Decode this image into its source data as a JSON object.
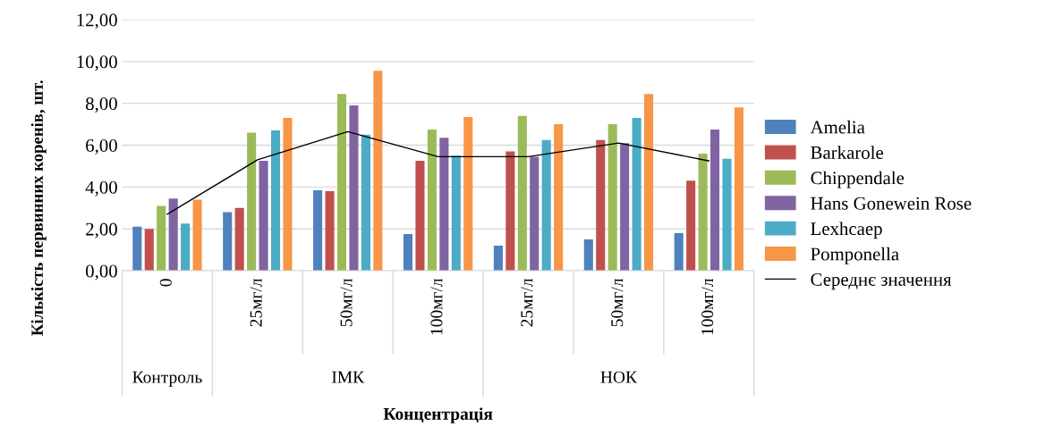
{
  "chart_data": {
    "type": "bar",
    "xlabel": "Концентрація",
    "ylabel": "Кількість первинних коренів, шт.",
    "categories": [
      "0",
      "25мг/л",
      "50мг/л",
      "100мг/л",
      "25мг/л",
      "50мг/л",
      "100мг/л"
    ],
    "annotations": [
      "Контроль",
      "ІМК",
      "НОК"
    ],
    "series": [
      {
        "name": "Amelia",
        "color": "#4f81bd",
        "values": [
          2.1,
          2.8,
          3.85,
          1.75,
          1.2,
          1.5,
          1.8
        ]
      },
      {
        "name": "Barkarole",
        "color": "#c0504d",
        "values": [
          2.0,
          3.0,
          3.8,
          5.25,
          5.7,
          6.25,
          4.3
        ]
      },
      {
        "name": "Chippendale",
        "color": "#9bbb59",
        "values": [
          3.1,
          6.6,
          8.45,
          6.75,
          7.4,
          7.0,
          5.6
        ]
      },
      {
        "name": "Hans Gonewein Rose",
        "color": "#8064a2",
        "values": [
          3.45,
          5.25,
          7.9,
          6.35,
          5.45,
          6.1,
          6.75
        ]
      },
      {
        "name": "Lexhcaep",
        "color": "#4bacc6",
        "values": [
          2.25,
          6.7,
          6.5,
          5.5,
          6.25,
          7.3,
          5.35
        ]
      },
      {
        "name": "Pomponella",
        "color": "#f79646",
        "values": [
          3.4,
          7.3,
          9.55,
          7.35,
          7.0,
          8.45,
          7.8
        ]
      },
      {
        "name": "Середнє значення",
        "type": "line",
        "color": "#000000",
        "values": [
          2.7,
          5.3,
          6.65,
          5.45,
          5.45,
          6.1,
          5.25
        ]
      }
    ],
    "ylim": [
      0,
      12
    ],
    "yticks": [
      {
        "value": 0,
        "label": "0,00"
      },
      {
        "value": 2,
        "label": "2,00"
      },
      {
        "value": 4,
        "label": "4,00"
      },
      {
        "value": 6,
        "label": "6,00"
      },
      {
        "value": 8,
        "label": "8,00"
      },
      {
        "value": 10,
        "label": "10,00"
      },
      {
        "value": 12,
        "label": "12,00"
      }
    ],
    "grid": "y",
    "legend": "right"
  }
}
